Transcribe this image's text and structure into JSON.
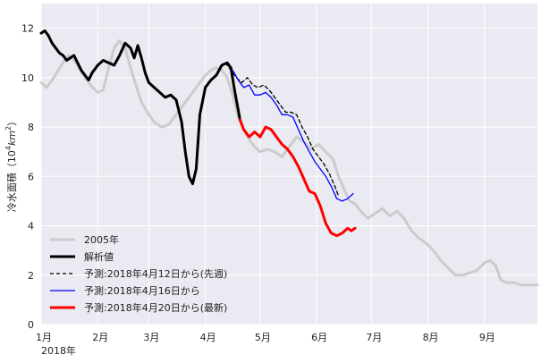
{
  "chart_data": {
    "type": "line",
    "ylabel": "冷水面積（10⁴km²）",
    "ylabel_main": "冷水面積（",
    "ylabel_base": "10",
    "ylabel_exp": "4",
    "ylabel_unit": "km",
    "ylabel_unit_exp": "2",
    "ylabel_close": "）",
    "ylim": [
      0,
      13
    ],
    "yticks": [
      0,
      2,
      4,
      6,
      8,
      10,
      12
    ],
    "x_axis": {
      "start": "2018-01-01",
      "end": "2018-09-30",
      "ticks": [
        {
          "date": "2018-01-01",
          "label": "1月"
        },
        {
          "date": "2018-02-01",
          "label": "2月"
        },
        {
          "date": "2018-03-01",
          "label": "3月"
        },
        {
          "date": "2018-04-01",
          "label": "4月"
        },
        {
          "date": "2018-05-01",
          "label": "5月"
        },
        {
          "date": "2018-06-01",
          "label": "6月"
        },
        {
          "date": "2018-07-01",
          "label": "7月"
        },
        {
          "date": "2018-08-01",
          "label": "8月"
        },
        {
          "date": "2018-09-01",
          "label": "9月"
        }
      ],
      "year_label": "2018年"
    },
    "grid": true,
    "background": "#eaeaf2",
    "legend_position": "lower-left",
    "series": [
      {
        "name": "2005年",
        "color": "#cccccc",
        "style": "solid",
        "width": 3,
        "points": [
          [
            "2018-01-01",
            9.8
          ],
          [
            "2018-01-04",
            9.6
          ],
          [
            "2018-01-08",
            10.0
          ],
          [
            "2018-01-12",
            10.5
          ],
          [
            "2018-01-16",
            10.9
          ],
          [
            "2018-01-20",
            10.6
          ],
          [
            "2018-01-24",
            10.1
          ],
          [
            "2018-01-28",
            9.7
          ],
          [
            "2018-02-01",
            9.4
          ],
          [
            "2018-02-04",
            9.5
          ],
          [
            "2018-02-07",
            10.4
          ],
          [
            "2018-02-10",
            11.2
          ],
          [
            "2018-02-13",
            11.5
          ],
          [
            "2018-02-16",
            11.2
          ],
          [
            "2018-02-19",
            10.4
          ],
          [
            "2018-02-22",
            9.7
          ],
          [
            "2018-02-25",
            9.0
          ],
          [
            "2018-03-01",
            8.5
          ],
          [
            "2018-03-04",
            8.2
          ],
          [
            "2018-03-08",
            8.0
          ],
          [
            "2018-03-12",
            8.1
          ],
          [
            "2018-03-16",
            8.5
          ],
          [
            "2018-03-20",
            8.9
          ],
          [
            "2018-03-24",
            9.3
          ],
          [
            "2018-03-28",
            9.7
          ],
          [
            "2018-04-01",
            10.1
          ],
          [
            "2018-04-04",
            10.3
          ],
          [
            "2018-04-07",
            10.4
          ],
          [
            "2018-04-10",
            10.3
          ],
          [
            "2018-04-13",
            10.0
          ],
          [
            "2018-04-16",
            9.3
          ],
          [
            "2018-04-19",
            8.4
          ],
          [
            "2018-04-22",
            7.9
          ],
          [
            "2018-04-25",
            7.5
          ],
          [
            "2018-04-28",
            7.2
          ],
          [
            "2018-05-01",
            7.0
          ],
          [
            "2018-05-05",
            7.1
          ],
          [
            "2018-05-09",
            7.0
          ],
          [
            "2018-05-13",
            6.8
          ],
          [
            "2018-05-17",
            7.2
          ],
          [
            "2018-05-21",
            7.6
          ],
          [
            "2018-05-25",
            7.4
          ],
          [
            "2018-05-29",
            7.1
          ],
          [
            "2018-06-02",
            7.3
          ],
          [
            "2018-06-06",
            7.0
          ],
          [
            "2018-06-10",
            6.7
          ],
          [
            "2018-06-13",
            6.0
          ],
          [
            "2018-06-16",
            5.5
          ],
          [
            "2018-06-19",
            5.0
          ],
          [
            "2018-06-22",
            4.9
          ],
          [
            "2018-06-25",
            4.6
          ],
          [
            "2018-06-29",
            4.3
          ],
          [
            "2018-07-03",
            4.5
          ],
          [
            "2018-07-07",
            4.7
          ],
          [
            "2018-07-11",
            4.4
          ],
          [
            "2018-07-15",
            4.6
          ],
          [
            "2018-07-19",
            4.3
          ],
          [
            "2018-07-23",
            3.8
          ],
          [
            "2018-07-27",
            3.5
          ],
          [
            "2018-07-31",
            3.3
          ],
          [
            "2018-08-04",
            3.0
          ],
          [
            "2018-08-08",
            2.6
          ],
          [
            "2018-08-12",
            2.3
          ],
          [
            "2018-08-16",
            2.0
          ],
          [
            "2018-08-20",
            2.0
          ],
          [
            "2018-08-24",
            2.1
          ],
          [
            "2018-08-28",
            2.2
          ],
          [
            "2018-09-01",
            2.5
          ],
          [
            "2018-09-04",
            2.6
          ],
          [
            "2018-09-07",
            2.4
          ],
          [
            "2018-09-10",
            1.8
          ],
          [
            "2018-09-13",
            1.7
          ],
          [
            "2018-09-17",
            1.7
          ],
          [
            "2018-09-21",
            1.6
          ],
          [
            "2018-09-25",
            1.6
          ],
          [
            "2018-09-30",
            1.6
          ]
        ]
      },
      {
        "name": "解析値",
        "color": "#000000",
        "style": "solid",
        "width": 3,
        "points": [
          [
            "2018-01-01",
            11.8
          ],
          [
            "2018-01-03",
            11.9
          ],
          [
            "2018-01-05",
            11.7
          ],
          [
            "2018-01-07",
            11.4
          ],
          [
            "2018-01-09",
            11.2
          ],
          [
            "2018-01-11",
            11.0
          ],
          [
            "2018-01-13",
            10.9
          ],
          [
            "2018-01-15",
            10.7
          ],
          [
            "2018-01-17",
            10.8
          ],
          [
            "2018-01-19",
            10.9
          ],
          [
            "2018-01-21",
            10.6
          ],
          [
            "2018-01-23",
            10.3
          ],
          [
            "2018-01-25",
            10.1
          ],
          [
            "2018-01-27",
            9.9
          ],
          [
            "2018-01-29",
            10.2
          ],
          [
            "2018-02-01",
            10.5
          ],
          [
            "2018-02-04",
            10.7
          ],
          [
            "2018-02-07",
            10.6
          ],
          [
            "2018-02-10",
            10.5
          ],
          [
            "2018-02-13",
            10.9
          ],
          [
            "2018-02-16",
            11.4
          ],
          [
            "2018-02-19",
            11.2
          ],
          [
            "2018-02-21",
            10.8
          ],
          [
            "2018-02-23",
            11.3
          ],
          [
            "2018-02-25",
            10.8
          ],
          [
            "2018-02-27",
            10.2
          ],
          [
            "2018-03-01",
            9.8
          ],
          [
            "2018-03-04",
            9.6
          ],
          [
            "2018-03-07",
            9.4
          ],
          [
            "2018-03-10",
            9.2
          ],
          [
            "2018-03-13",
            9.3
          ],
          [
            "2018-03-16",
            9.1
          ],
          [
            "2018-03-19",
            8.2
          ],
          [
            "2018-03-21",
            7.0
          ],
          [
            "2018-03-23",
            6.0
          ],
          [
            "2018-03-25",
            5.7
          ],
          [
            "2018-03-27",
            6.3
          ],
          [
            "2018-03-29",
            8.5
          ],
          [
            "2018-04-01",
            9.6
          ],
          [
            "2018-04-04",
            9.9
          ],
          [
            "2018-04-07",
            10.1
          ],
          [
            "2018-04-10",
            10.5
          ],
          [
            "2018-04-13",
            10.6
          ],
          [
            "2018-04-15",
            10.4
          ],
          [
            "2018-04-17",
            9.5
          ],
          [
            "2018-04-20",
            8.3
          ]
        ]
      },
      {
        "name": "予測:2018年4月12日から(先週)",
        "color": "#000000",
        "style": "dashed",
        "width": 1.3,
        "points": [
          [
            "2018-04-12",
            10.6
          ],
          [
            "2018-04-15",
            10.3
          ],
          [
            "2018-04-18",
            10.0
          ],
          [
            "2018-04-21",
            9.8
          ],
          [
            "2018-04-24",
            10.0
          ],
          [
            "2018-04-27",
            9.7
          ],
          [
            "2018-04-30",
            9.6
          ],
          [
            "2018-05-03",
            9.7
          ],
          [
            "2018-05-06",
            9.5
          ],
          [
            "2018-05-09",
            9.2
          ],
          [
            "2018-05-12",
            8.9
          ],
          [
            "2018-05-15",
            8.6
          ],
          [
            "2018-05-18",
            8.6
          ],
          [
            "2018-05-21",
            8.5
          ],
          [
            "2018-05-24",
            8.0
          ],
          [
            "2018-05-27",
            7.6
          ],
          [
            "2018-05-30",
            7.1
          ],
          [
            "2018-06-02",
            6.8
          ],
          [
            "2018-06-05",
            6.5
          ],
          [
            "2018-06-08",
            6.1
          ],
          [
            "2018-06-11",
            5.6
          ],
          [
            "2018-06-13",
            5.2
          ]
        ]
      },
      {
        "name": "予測:2018年4月16日から",
        "color": "#0000ff",
        "style": "solid",
        "width": 1.3,
        "points": [
          [
            "2018-04-16",
            10.3
          ],
          [
            "2018-04-19",
            9.9
          ],
          [
            "2018-04-22",
            9.6
          ],
          [
            "2018-04-25",
            9.7
          ],
          [
            "2018-04-28",
            9.3
          ],
          [
            "2018-05-01",
            9.3
          ],
          [
            "2018-05-04",
            9.4
          ],
          [
            "2018-05-07",
            9.2
          ],
          [
            "2018-05-10",
            8.9
          ],
          [
            "2018-05-13",
            8.5
          ],
          [
            "2018-05-16",
            8.5
          ],
          [
            "2018-05-19",
            8.4
          ],
          [
            "2018-05-22",
            7.9
          ],
          [
            "2018-05-25",
            7.4
          ],
          [
            "2018-05-28",
            7.0
          ],
          [
            "2018-05-31",
            6.6
          ],
          [
            "2018-06-03",
            6.3
          ],
          [
            "2018-06-06",
            6.0
          ],
          [
            "2018-06-09",
            5.6
          ],
          [
            "2018-06-12",
            5.1
          ],
          [
            "2018-06-15",
            5.0
          ],
          [
            "2018-06-18",
            5.1
          ],
          [
            "2018-06-21",
            5.3
          ]
        ]
      },
      {
        "name": "予測:2018年4月20日から(最新)",
        "color": "#ff0000",
        "style": "solid",
        "width": 3,
        "points": [
          [
            "2018-04-20",
            8.3
          ],
          [
            "2018-04-22",
            7.9
          ],
          [
            "2018-04-25",
            7.6
          ],
          [
            "2018-04-28",
            7.8
          ],
          [
            "2018-05-01",
            7.6
          ],
          [
            "2018-05-04",
            8.0
          ],
          [
            "2018-05-07",
            7.9
          ],
          [
            "2018-05-10",
            7.6
          ],
          [
            "2018-05-13",
            7.3
          ],
          [
            "2018-05-16",
            7.1
          ],
          [
            "2018-05-19",
            6.8
          ],
          [
            "2018-05-22",
            6.4
          ],
          [
            "2018-05-25",
            5.9
          ],
          [
            "2018-05-28",
            5.4
          ],
          [
            "2018-05-31",
            5.3
          ],
          [
            "2018-06-03",
            4.8
          ],
          [
            "2018-06-06",
            4.1
          ],
          [
            "2018-06-09",
            3.7
          ],
          [
            "2018-06-12",
            3.6
          ],
          [
            "2018-06-15",
            3.7
          ],
          [
            "2018-06-18",
            3.9
          ],
          [
            "2018-06-20",
            3.8
          ],
          [
            "2018-06-22",
            3.9
          ]
        ]
      }
    ]
  }
}
